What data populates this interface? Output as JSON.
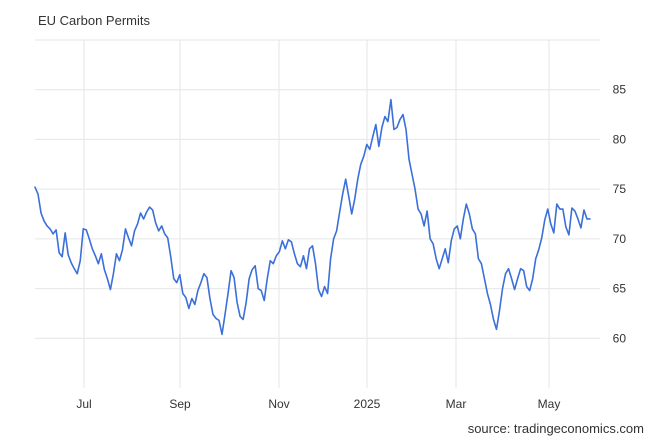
{
  "title": "EU Carbon Permits",
  "source": "source: tradingeconomics.com",
  "colors": {
    "line": "#3b6fd9",
    "grid": "#e6e6e6",
    "text": "#333333"
  },
  "chart_data": {
    "type": "line",
    "title": "EU Carbon Permits",
    "xlabel": "",
    "ylabel": "",
    "ylim": [
      55,
      90
    ],
    "y_ticks": [
      60,
      65,
      70,
      75,
      80,
      85
    ],
    "x_ticks": [
      "Jul",
      "Sep",
      "Nov",
      "2025",
      "Mar",
      "May"
    ],
    "grid": true,
    "y_axis_side": "right",
    "series": [
      {
        "values": [
          75.2,
          74.5,
          72.6,
          71.8,
          71.3,
          71.0,
          70.5,
          70.9,
          68.6,
          68.2,
          70.6,
          68.4,
          67.6,
          67.0,
          66.5,
          67.8,
          71.0,
          70.9,
          70.0,
          69.0,
          68.3,
          67.5,
          68.5,
          66.9,
          66.0,
          64.9,
          66.5,
          68.5,
          67.8,
          68.9,
          71.0,
          70.1,
          69.3,
          70.8,
          71.5,
          72.6,
          72.0,
          72.7,
          73.2,
          72.9,
          71.6,
          70.8,
          71.3,
          70.5,
          70.1,
          68.2,
          66.0,
          65.6,
          66.4,
          64.5,
          64.1,
          63.0,
          64.0,
          63.4,
          64.8,
          65.6,
          66.5,
          66.1,
          64.0,
          62.4,
          62.0,
          61.8,
          60.4,
          62.4,
          64.5,
          66.8,
          66.1,
          63.6,
          62.2,
          61.9,
          63.6,
          66.0,
          66.9,
          67.3,
          65.0,
          64.8,
          63.8,
          66.0,
          67.8,
          67.5,
          68.3,
          68.7,
          69.8,
          69.0,
          69.9,
          69.7,
          68.5,
          67.5,
          67.2,
          68.3,
          67.0,
          69.0,
          69.3,
          67.5,
          64.9,
          64.2,
          65.2,
          64.5,
          68.0,
          70.0,
          70.8,
          72.7,
          74.5,
          76.0,
          74.3,
          72.5,
          74.0,
          76.0,
          77.5,
          78.3,
          79.5,
          79.0,
          80.3,
          81.5,
          79.3,
          81.2,
          82.3,
          81.8,
          84.0,
          81.0,
          81.2,
          82.0,
          82.5,
          81.0,
          78.0,
          76.5,
          75.0,
          73.0,
          72.5,
          71.3,
          72.8,
          70.0,
          69.5,
          68.0,
          67.0,
          68.0,
          69.0,
          67.6,
          69.8,
          71.0,
          71.3,
          70.0,
          72.0,
          73.5,
          72.5,
          71.0,
          70.5,
          68.0,
          67.5,
          66.0,
          64.5,
          63.4,
          61.9,
          60.9,
          62.8,
          65.0,
          66.5,
          67.0,
          66.0,
          64.9,
          66.0,
          67.0,
          66.8,
          65.2,
          64.8,
          66.0,
          68.0,
          68.9,
          70.1,
          71.9,
          73.0,
          71.5,
          70.6,
          73.5,
          73.0,
          73.0,
          71.2,
          70.4,
          73.1,
          72.8,
          72.0,
          71.1,
          72.9,
          72.0,
          72.0
        ]
      }
    ]
  }
}
